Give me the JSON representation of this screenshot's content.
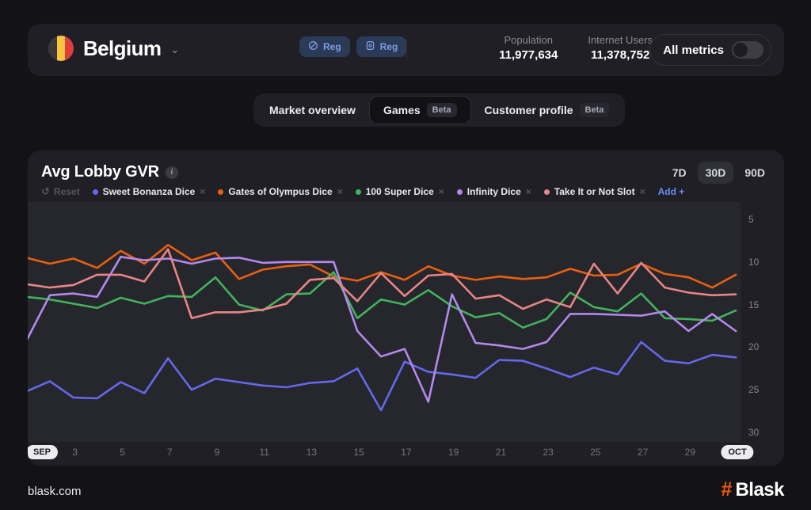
{
  "header": {
    "country": "Belgium",
    "badges": [
      {
        "label": "Reg",
        "icon": "globe-icon"
      },
      {
        "label": "Reg",
        "icon": "app-icon"
      }
    ],
    "stats": [
      {
        "label": "Population",
        "value": "11,977,634"
      },
      {
        "label": "Internet Users",
        "value": "11,378,752"
      }
    ],
    "all_metrics_label": "All metrics",
    "toggle_state": "off"
  },
  "tabs": [
    {
      "label": "Market overview",
      "badge": "",
      "active": false
    },
    {
      "label": "Games",
      "badge": "Beta",
      "active": true
    },
    {
      "label": "Customer profile",
      "badge": "Beta",
      "active": false
    }
  ],
  "chart": {
    "title": "Avg Lobby GVR",
    "reset_label": "Reset",
    "add_label": "Add +",
    "range_buttons": [
      "7D",
      "30D",
      "90D"
    ],
    "active_range": "30D"
  },
  "chart_data": {
    "type": "line",
    "title": "Avg Lobby GVR",
    "x_unit": "day of September (31 = Oct 1)",
    "x": [
      1,
      2,
      3,
      4,
      5,
      6,
      7,
      8,
      9,
      10,
      11,
      12,
      13,
      14,
      15,
      16,
      17,
      18,
      19,
      20,
      21,
      22,
      23,
      24,
      25,
      26,
      27,
      28,
      29,
      30,
      31
    ],
    "x_axis_labels": [
      {
        "label": "SEP",
        "day": 1,
        "pill": true
      },
      {
        "label": "3",
        "day": 3
      },
      {
        "label": "5",
        "day": 5
      },
      {
        "label": "7",
        "day": 7
      },
      {
        "label": "9",
        "day": 9
      },
      {
        "label": "11",
        "day": 11
      },
      {
        "label": "13",
        "day": 13
      },
      {
        "label": "15",
        "day": 15
      },
      {
        "label": "17",
        "day": 17
      },
      {
        "label": "19",
        "day": 19
      },
      {
        "label": "21",
        "day": 21
      },
      {
        "label": "23",
        "day": 23
      },
      {
        "label": "25",
        "day": 25
      },
      {
        "label": "27",
        "day": 27
      },
      {
        "label": "29",
        "day": 29
      },
      {
        "label": "OCT",
        "day": 31,
        "pill": true
      }
    ],
    "y_ticks": [
      5,
      10,
      15,
      20,
      25,
      30
    ],
    "ylim": [
      5,
      30
    ],
    "y_inverted": true,
    "grid": false,
    "legend_position": "top-left",
    "series": [
      {
        "name": "Sweet Bonanza Dice",
        "color": "#6468ea",
        "values": [
          25.2,
          24.0,
          25.9,
          26.0,
          24.1,
          25.4,
          21.3,
          25.0,
          23.7,
          24.1,
          24.5,
          24.7,
          24.2,
          24.0,
          22.5,
          27.4,
          21.7,
          22.9,
          23.2,
          23.6,
          21.5,
          21.6,
          22.5,
          23.5,
          22.4,
          23.2,
          19.4,
          21.6,
          21.9,
          20.9,
          21.2
        ]
      },
      {
        "name": "Gates of Olympus Dice",
        "color": "#e8600f",
        "values": [
          9.5,
          10.2,
          9.6,
          10.7,
          8.7,
          10.2,
          8.0,
          9.8,
          8.9,
          12.0,
          10.9,
          10.5,
          10.3,
          11.7,
          12.2,
          11.2,
          12.1,
          10.5,
          11.6,
          12.1,
          11.7,
          12.0,
          11.8,
          10.8,
          11.6,
          11.5,
          10.2,
          11.4,
          11.8,
          13.0,
          11.5
        ]
      },
      {
        "name": "100 Super Dice",
        "color": "#42b35c",
        "values": [
          14.1,
          14.4,
          14.9,
          15.4,
          14.2,
          14.9,
          14.0,
          14.1,
          11.8,
          15.0,
          15.7,
          13.8,
          13.7,
          11.2,
          16.6,
          14.4,
          15.0,
          13.3,
          15.2,
          16.5,
          16.0,
          17.7,
          16.7,
          13.6,
          15.3,
          15.8,
          13.7,
          16.6,
          16.7,
          16.9,
          15.7
        ]
      },
      {
        "name": "Infinity Dice",
        "color": "#b289ec",
        "values": [
          19.3,
          13.9,
          13.7,
          14.1,
          9.4,
          9.8,
          9.6,
          10.2,
          9.6,
          9.5,
          10.1,
          10.0,
          10.0,
          10.0,
          18.1,
          21.1,
          20.2,
          26.4,
          13.8,
          19.5,
          19.8,
          20.2,
          19.4,
          16.1,
          16.1,
          16.2,
          16.3,
          15.8,
          18.1,
          16.1,
          18.1
        ]
      },
      {
        "name": "Take It or Not Slot",
        "color": "#e98585",
        "values": [
          12.6,
          13.0,
          12.7,
          11.5,
          11.5,
          12.3,
          8.5,
          16.6,
          15.9,
          15.9,
          15.6,
          14.9,
          12.1,
          11.9,
          14.6,
          11.3,
          14.0,
          11.6,
          11.4,
          14.3,
          13.9,
          15.5,
          14.4,
          15.3,
          10.2,
          13.7,
          10.1,
          13.0,
          13.6,
          13.9,
          13.8
        ]
      }
    ]
  },
  "footer": {
    "site": "blask.com",
    "logo_text": "Blask",
    "logo_hash": "#",
    "logo_color": "#f05a0e"
  }
}
